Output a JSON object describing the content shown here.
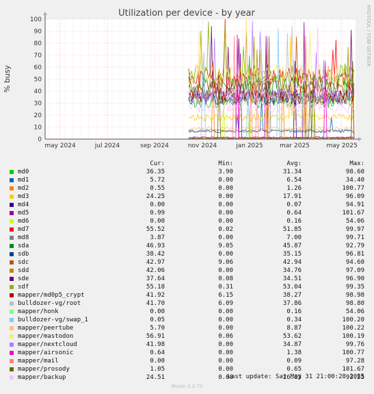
{
  "chart_data": {
    "type": "line",
    "title": "Utilization per device - by year",
    "ylabel": "% busy",
    "ylim": [
      0,
      100
    ],
    "yticks": [
      0,
      10,
      20,
      30,
      40,
      50,
      60,
      70,
      80,
      90,
      100
    ],
    "xticks": [
      "may 2024",
      "jul 2024",
      "sep 2024",
      "nov 2024",
      "jan 2025",
      "mar 2025",
      "may 2025"
    ],
    "data_start_tick": 3,
    "grid": true,
    "legend_position": "bottom",
    "legend_headers": {
      "cur": "Cur:",
      "min": "Min:",
      "avg": "Avg:",
      "max": "Max:"
    },
    "series": [
      {
        "name": "md0",
        "color": "#00cc00",
        "cur": "36.35",
        "min": "3.90",
        "avg": "31.34",
        "max": "98.60"
      },
      {
        "name": "md1",
        "color": "#0066b3",
        "cur": "5.72",
        "min": "0.00",
        "avg": "6.54",
        "max": "34.40"
      },
      {
        "name": "md2",
        "color": "#ff8000",
        "cur": "0.55",
        "min": "0.00",
        "avg": "1.26",
        "max": "100.77"
      },
      {
        "name": "md3",
        "color": "#ffcc00",
        "cur": "24.25",
        "min": "0.00",
        "avg": "17.91",
        "max": "96.09"
      },
      {
        "name": "md4",
        "color": "#330099",
        "cur": "0.00",
        "min": "0.00",
        "avg": "0.07",
        "max": "94.91"
      },
      {
        "name": "md5",
        "color": "#990099",
        "cur": "0.99",
        "min": "0.00",
        "avg": "0.64",
        "max": "101.67"
      },
      {
        "name": "md6",
        "color": "#ccff00",
        "cur": "0.00",
        "min": "0.00",
        "avg": "0.16",
        "max": "54.06"
      },
      {
        "name": "md7",
        "color": "#ff0000",
        "cur": "55.52",
        "min": "0.02",
        "avg": "51.85",
        "max": "99.97"
      },
      {
        "name": "md8",
        "color": "#808080",
        "cur": "3.87",
        "min": "0.00",
        "avg": "7.00",
        "max": "99.71"
      },
      {
        "name": "sda",
        "color": "#008f00",
        "cur": "46.93",
        "min": "9.05",
        "avg": "45.87",
        "max": "92.79"
      },
      {
        "name": "sdb",
        "color": "#00487d",
        "cur": "38.42",
        "min": "0.00",
        "avg": "35.15",
        "max": "96.81"
      },
      {
        "name": "sdc",
        "color": "#b35a00",
        "cur": "42.97",
        "min": "9.06",
        "avg": "42.94",
        "max": "94.60"
      },
      {
        "name": "sdd",
        "color": "#b38f00",
        "cur": "42.06",
        "min": "0.00",
        "avg": "34.76",
        "max": "97.09"
      },
      {
        "name": "sde",
        "color": "#6b006b",
        "cur": "37.64",
        "min": "0.08",
        "avg": "34.51",
        "max": "96.90"
      },
      {
        "name": "sdf",
        "color": "#8fb300",
        "cur": "55.18",
        "min": "0.31",
        "avg": "53.04",
        "max": "99.35"
      },
      {
        "name": "mapper/md0p5_crypt",
        "color": "#b30000",
        "cur": "41.92",
        "min": "6.15",
        "avg": "38.27",
        "max": "98.98"
      },
      {
        "name": "bulldozer-vg/root",
        "color": "#bebebe",
        "cur": "41.70",
        "min": "6.09",
        "avg": "37.86",
        "max": "98.80"
      },
      {
        "name": "mapper/honk",
        "color": "#80ff80",
        "cur": "0.00",
        "min": "0.00",
        "avg": "0.16",
        "max": "54.06"
      },
      {
        "name": "bulldozer-vg/swap_1",
        "color": "#80c9ff",
        "cur": "0.05",
        "min": "0.00",
        "avg": "0.34",
        "max": "100.20"
      },
      {
        "name": "mapper/peertube",
        "color": "#ffc080",
        "cur": "5.70",
        "min": "0.00",
        "avg": "8.87",
        "max": "100.22"
      },
      {
        "name": "mapper/mastodon",
        "color": "#ffe680",
        "cur": "56.91",
        "min": "0.06",
        "avg": "53.62",
        "max": "100.19"
      },
      {
        "name": "mapper/nextcloud",
        "color": "#aa80ff",
        "cur": "41.98",
        "min": "0.00",
        "avg": "34.87",
        "max": "99.76"
      },
      {
        "name": "mapper/airsonic",
        "color": "#ee00cc",
        "cur": "0.64",
        "min": "0.00",
        "avg": "1.38",
        "max": "100.77"
      },
      {
        "name": "mapper/mail",
        "color": "#ff8080",
        "cur": "0.00",
        "min": "0.00",
        "avg": "0.09",
        "max": "97.28"
      },
      {
        "name": "mapper/prosody",
        "color": "#666600",
        "cur": "1.05",
        "min": "0.00",
        "avg": "0.65",
        "max": "101.67"
      },
      {
        "name": "mapper/backup",
        "color": "#ffbfff",
        "cur": "24.51",
        "min": "0.00",
        "avg": "26.85",
        "max": "93.55"
      }
    ]
  },
  "side_label": "RRDTOOL / TOBI OETIKER",
  "footer": {
    "last_update": "Last update: Sat May 31 21:00:28 2025",
    "munin_version": "Munin 2.0.73"
  }
}
